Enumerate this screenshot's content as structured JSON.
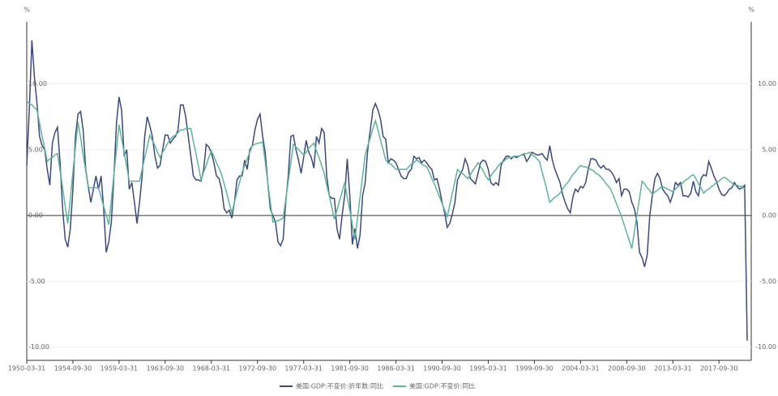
{
  "chart_data": {
    "type": "line",
    "y_unit": "%",
    "categories": [
      "1950-03-31",
      null,
      null,
      null,
      null,
      null,
      null,
      null,
      null,
      null,
      null,
      null,
      null,
      null,
      null,
      null,
      null,
      null,
      "1954-09-30",
      null,
      null,
      null,
      null,
      null,
      null,
      null,
      null,
      null,
      null,
      null,
      null,
      null,
      null,
      null,
      null,
      null,
      "1959-03-31",
      null,
      null,
      null,
      null,
      null,
      null,
      null,
      null,
      null,
      null,
      null,
      null,
      null,
      null,
      null,
      null,
      null,
      "1963-09-30",
      null,
      null,
      null,
      null,
      null,
      null,
      null,
      null,
      null,
      null,
      null,
      null,
      null,
      null,
      null,
      null,
      null,
      "1968-03-31",
      null,
      null,
      null,
      null,
      null,
      null,
      null,
      null,
      null,
      null,
      null,
      null,
      null,
      null,
      null,
      null,
      null,
      "1972-09-30",
      null,
      null,
      null,
      null,
      null,
      null,
      null,
      null,
      null,
      null,
      null,
      null,
      null,
      null,
      null,
      null,
      null,
      "1977-03-31",
      null,
      null,
      null,
      null,
      null,
      null,
      null,
      null,
      null,
      null,
      null,
      null,
      null,
      null,
      null,
      null,
      null,
      "1981-09-30",
      null,
      null,
      null,
      null,
      null,
      null,
      null,
      null,
      null,
      null,
      null,
      null,
      null,
      null,
      null,
      null,
      null,
      "1986-03-31",
      null,
      null,
      null,
      null,
      null,
      null,
      null,
      null,
      null,
      null,
      null,
      null,
      null,
      null,
      null,
      null,
      null,
      "1990-09-30",
      null,
      null,
      null,
      null,
      null,
      null,
      null,
      null,
      null,
      null,
      null,
      null,
      null,
      null,
      null,
      null,
      null,
      "1995-03-31",
      null,
      null,
      null,
      null,
      null,
      null,
      null,
      null,
      null,
      null,
      null,
      null,
      null,
      null,
      null,
      null,
      null,
      "1999-09-30",
      null,
      null,
      null,
      null,
      null,
      null,
      null,
      null,
      null,
      null,
      null,
      null,
      null,
      null,
      null,
      null,
      null,
      "2004-03-31",
      null,
      null,
      null,
      null,
      null,
      null,
      null,
      null,
      null,
      null,
      null,
      null,
      null,
      null,
      null,
      null,
      null,
      "2008-09-30",
      null,
      null,
      null,
      null,
      null,
      null,
      null,
      null,
      null,
      null,
      null,
      null,
      null,
      null,
      null,
      null,
      null,
      "2013-03-31",
      null,
      null,
      null,
      null,
      null,
      null,
      null,
      null,
      null,
      null,
      null,
      null,
      null,
      null,
      null,
      null,
      null,
      "2017-09-30",
      null,
      null,
      null,
      null,
      null,
      null,
      null,
      null,
      null,
      null,
      null
    ],
    "series": [
      {
        "name": "美国:GDP:不变价:折年数:同比",
        "color": "#3b4a7d",
        "values": [
          3.8,
          8,
          13.3,
          10.5,
          8.5,
          6,
          5.3,
          5,
          3.5,
          2.3,
          5.5,
          6.3,
          6.7,
          4,
          0.5,
          -1.8,
          -2.4,
          -1,
          2,
          6,
          7.7,
          7.9,
          6.5,
          3.5,
          2.2,
          1,
          2,
          3,
          2,
          3,
          0.5,
          -2.8,
          -2,
          -0.5,
          3,
          7,
          9,
          8,
          4.5,
          5,
          2,
          2.5,
          1,
          -0.6,
          1,
          3,
          6,
          7.5,
          6.8,
          6,
          4.5,
          3.6,
          3.8,
          5,
          6.1,
          6.1,
          5.5,
          5.8,
          6,
          6.5,
          8.4,
          8.4,
          7.5,
          6,
          4.5,
          3,
          2.7,
          2.7,
          2.6,
          3.5,
          5.4,
          5.2,
          4.8,
          4,
          3,
          2.8,
          2,
          0.5,
          0.2,
          0.4,
          -0.2,
          1,
          2.7,
          3,
          3,
          4.2,
          3.5,
          5,
          5.3,
          6.5,
          7.3,
          7.7,
          6,
          4.8,
          2.5,
          0.5,
          0,
          -0.5,
          -2,
          -2.3,
          -1.8,
          1,
          3,
          6,
          6.1,
          5,
          4.2,
          3.2,
          4.4,
          5.7,
          4.8,
          4.4,
          3.6,
          6,
          5.5,
          6.6,
          6.3,
          3,
          1.5,
          1.3,
          1.3,
          -1,
          -1.8,
          0,
          1.5,
          4.3,
          1.5,
          -2.2,
          -1,
          -2.5,
          -1.5,
          1.5,
          2.5,
          5,
          6.5,
          8,
          8.5,
          8,
          7.3,
          6,
          5.8,
          4,
          4.3,
          4.2,
          4,
          3.5,
          3,
          2.8,
          2.8,
          3.3,
          3.5,
          4.5,
          4.3,
          4.4,
          4,
          4.2,
          4,
          3.7,
          3.5,
          2.7,
          2.8,
          2,
          1,
          0.2,
          -0.9,
          -0.6,
          0.1,
          1,
          2.7,
          3.1,
          3.5,
          4.3,
          3.8,
          2.8,
          2.6,
          2.4,
          3.2,
          4,
          4.2,
          4.1,
          3.5,
          2.5,
          2.3,
          2.5,
          2.3,
          3.8,
          4.2,
          4.5,
          4.5,
          4.3,
          4.5,
          4.4,
          4.5,
          4.6,
          4.6,
          4.1,
          4.4,
          4.8,
          4.7,
          4.6,
          4.6,
          4.7,
          4.4,
          4.2,
          5.3,
          4.2,
          3.5,
          3,
          2.5,
          1.6,
          1,
          0.5,
          0.2,
          1.4,
          2,
          1.8,
          2.2,
          2.1,
          2.5,
          3.5,
          4.3,
          4.3,
          4.2,
          3.8,
          3.6,
          3.8,
          3.5,
          3.5,
          3.3,
          3,
          2.5,
          2.8,
          1.5,
          2,
          2,
          1.8,
          1,
          0.5,
          -0.5,
          -2.8,
          -3.2,
          -3.9,
          -3,
          0,
          1.5,
          2.8,
          3.2,
          2.8,
          2,
          1.7,
          1.5,
          1,
          1.6,
          2.5,
          2.3,
          2.5,
          1.5,
          1.5,
          1.4,
          1.7,
          2.6,
          1.8,
          1.5,
          2.8,
          3.1,
          3,
          4.1,
          3.6,
          3,
          2.6,
          2,
          1.6,
          1.5,
          1.7,
          2,
          2.1,
          2.5,
          2.2,
          2.0,
          2.1,
          2.3,
          -9.5
        ]
      },
      {
        "name": "美国:GDP:不变价:同比",
        "color": "#5fb39a",
        "values": [
          8.7,
          8.5,
          8.4,
          8.2,
          8.0,
          7.0,
          6.0,
          5.1,
          4.1,
          4.3,
          4.4,
          4.6,
          4.7,
          3.4,
          2.1,
          0.7,
          -0.6,
          1.3,
          3.3,
          5.2,
          7.1,
          5.9,
          4.6,
          3.4,
          2.1,
          2.1,
          2.1,
          2.1,
          2.1,
          1.4,
          0.7,
          0,
          -0.7,
          1.2,
          3.1,
          5.0,
          6.9,
          5.8,
          4.8,
          3.7,
          2.6,
          2.6,
          2.6,
          2.6,
          2.6,
          3.5,
          4.4,
          5.2,
          6.1,
          5.7,
          5.3,
          4.8,
          4.4,
          4.8,
          5.1,
          5.5,
          5.8,
          6.0,
          6.1,
          6.3,
          6.5,
          6.5,
          6.6,
          6.6,
          6.6,
          5.6,
          4.7,
          3.7,
          2.7,
          3.3,
          3.8,
          4.4,
          4.9,
          4.5,
          4.0,
          3.6,
          3.1,
          2.4,
          1.7,
          0.9,
          0.2,
          1.0,
          1.8,
          2.5,
          3.3,
          3.8,
          4.3,
          4.8,
          5.3,
          5.4,
          5.5,
          5.5,
          5.6,
          4.1,
          2.5,
          1.0,
          -0.5,
          -0.4,
          -0.4,
          -0.3,
          -0.2,
          1.2,
          2.6,
          4.0,
          5.4,
          5.2,
          5.0,
          4.8,
          4.6,
          4.8,
          5.1,
          5.3,
          5.5,
          4.9,
          4.4,
          3.8,
          3.2,
          2.3,
          1.5,
          0.6,
          -0.3,
          0.4,
          1.1,
          1.8,
          2.5,
          1.4,
          0.4,
          -0.7,
          -1.8,
          -0.2,
          1.4,
          3.0,
          4.6,
          5.3,
          5.9,
          6.6,
          7.2,
          6.5,
          5.7,
          5.0,
          4.2,
          4.0,
          3.9,
          3.7,
          3.5,
          3.5,
          3.5,
          3.5,
          3.5,
          3.7,
          3.9,
          4.0,
          4.2,
          4.1,
          3.9,
          3.8,
          3.7,
          3.3,
          2.8,
          2.4,
          1.9,
          1.4,
          0.9,
          0.4,
          -0.1,
          0.8,
          1.7,
          2.6,
          3.5,
          3.3,
          3.2,
          3.0,
          2.8,
          3.1,
          3.4,
          3.7,
          4.0,
          3.7,
          3.4,
          3.0,
          2.7,
          3.0,
          3.3,
          3.5,
          3.8,
          4.0,
          4.1,
          4.3,
          4.4,
          4.4,
          4.5,
          4.5,
          4.5,
          4.6,
          4.7,
          4.7,
          4.8,
          4.6,
          4.5,
          4.3,
          4.1,
          3.3,
          2.6,
          1.8,
          1.0,
          1.2,
          1.4,
          1.5,
          1.7,
          2.0,
          2.3,
          2.5,
          2.8,
          3.1,
          3.3,
          3.6,
          3.8,
          3.7,
          3.7,
          3.6,
          3.5,
          3.4,
          3.2,
          3.1,
          2.9,
          2.7,
          2.4,
          2.2,
          1.9,
          1.4,
          0.9,
          0.4,
          -0.1,
          -0.7,
          -1.3,
          -1.9,
          -2.5,
          -1.2,
          0.1,
          1.3,
          2.6,
          2.4,
          2.1,
          1.9,
          1.6,
          1.8,
          1.9,
          2.1,
          2.2,
          2.1,
          2.0,
          1.9,
          1.8,
          2.0,
          2.2,
          2.3,
          2.5,
          2.7,
          2.8,
          3.0,
          3.1,
          2.8,
          2.4,
          2.1,
          1.7,
          1.9,
          2.0,
          2.2,
          2.3,
          2.5,
          2.6,
          2.8,
          2.9,
          2.8,
          2.6,
          2.5,
          2.3,
          2.3,
          2.2,
          2.2,
          2.0,
          null
        ]
      }
    ],
    "ylim": [
      -11,
      14.7
    ],
    "yticks": [
      {
        "value": -10,
        "label": "-10.00"
      },
      {
        "value": -5,
        "label": "-5.00"
      },
      {
        "value": 0,
        "label": "0.00"
      },
      {
        "value": 5,
        "label": "5.00"
      },
      {
        "value": 10,
        "label": "10.00"
      }
    ],
    "grid": true,
    "legend": "bottom"
  }
}
